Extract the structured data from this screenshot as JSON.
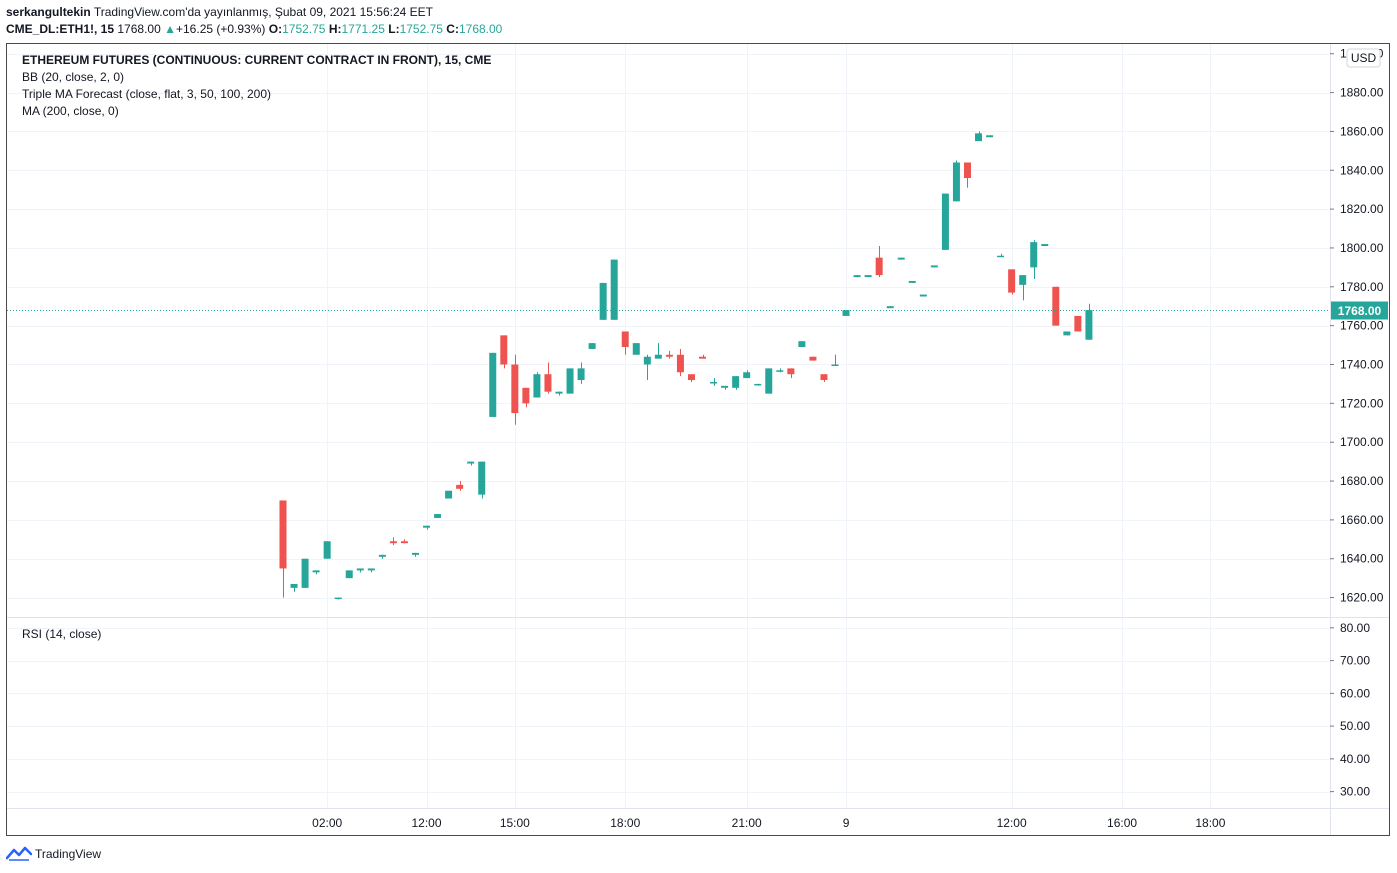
{
  "header": {
    "author": "serkangultekin",
    "published": "TradingView.com'da yayınlanmış, Şubat 09, 2021 15:56:24 EET",
    "symbol": "CME_DL:ETH1!, 15",
    "last": "1768.00",
    "change_arrow": "▲",
    "change": "+16.25 (+0.93%)",
    "o_label": "O:",
    "o": "1752.75",
    "h_label": "H:",
    "h": "1771.25",
    "l_label": "L:",
    "l": "1752.75",
    "c_label": "C:",
    "c": "1768.00"
  },
  "indicators": {
    "title": "ETHEREUM FUTURES (CONTINUOUS: CURRENT CONTRACT IN FRONT), 15, CME",
    "bb": "BB (20, close, 2, 0)",
    "triple_ma": "Triple MA Forecast (close, flat, 3, 50, 100, 200)",
    "ma": "MA (200, close, 0)",
    "rsi": "RSI (14, close)"
  },
  "footer": {
    "brand": "TradingView"
  },
  "colors": {
    "up": "#26a69a",
    "down": "#ef5350",
    "grid": "#f0f3fa",
    "text": "#131722"
  },
  "chart_data": {
    "type": "candlestick",
    "currency": "USD",
    "price_label": "1768.00",
    "y_ticks": [
      "1900.00",
      "1880.00",
      "1860.00",
      "1840.00",
      "1820.00",
      "1800.00",
      "1780.00",
      "1760.00",
      "1740.00",
      "1720.00",
      "1700.00",
      "1680.00",
      "1660.00",
      "1640.00",
      "1620.00"
    ],
    "ylim": [
      1610,
      1905
    ],
    "rsi_ticks": [
      "80.00",
      "70.00",
      "60.00",
      "50.00",
      "40.00",
      "30.00"
    ],
    "rsi_lim": [
      25,
      83
    ],
    "x_ticks": [
      {
        "label": "02:00",
        "t": 4
      },
      {
        "label": "12:00",
        "t": 13
      },
      {
        "label": "15:00",
        "t": 21
      },
      {
        "label": "18:00",
        "t": 31
      },
      {
        "label": "21:00",
        "t": 42
      },
      {
        "label": "9",
        "t": 51
      },
      {
        "label": "12:00",
        "t": 66
      },
      {
        "label": "16:00",
        "t": 76
      },
      {
        "label": "18:00",
        "t": 84
      }
    ],
    "candles": [
      [
        0,
        1670,
        1670,
        1620,
        1635
      ],
      [
        1,
        1625,
        1627,
        1623,
        1627
      ],
      [
        2,
        1625,
        1640,
        1625,
        1640
      ],
      [
        3,
        1633,
        1634,
        1632,
        1634
      ],
      [
        4,
        1640,
        1649,
        1640,
        1649
      ],
      [
        5,
        1620,
        1620,
        1619,
        1620
      ],
      [
        6,
        1630,
        1634,
        1630,
        1634
      ],
      [
        7,
        1634,
        1635,
        1633,
        1635
      ],
      [
        8,
        1634,
        1635,
        1633,
        1635
      ],
      [
        9,
        1641,
        1642,
        1640,
        1642
      ],
      [
        10,
        1649,
        1651,
        1647,
        1648
      ],
      [
        11,
        1649,
        1650,
        1648,
        1648
      ],
      [
        12,
        1642,
        1643,
        1641,
        1643
      ],
      [
        13,
        1656,
        1657,
        1655,
        1657
      ],
      [
        14,
        1661,
        1663,
        1661,
        1663
      ],
      [
        15,
        1671,
        1675,
        1671,
        1675
      ],
      [
        16,
        1678,
        1680,
        1675,
        1676
      ],
      [
        17,
        1689,
        1690,
        1688,
        1690
      ],
      [
        18,
        1673,
        1690,
        1671,
        1690
      ],
      [
        19,
        1713,
        1746,
        1713,
        1746
      ],
      [
        20,
        1755,
        1755,
        1738,
        1740
      ],
      [
        21,
        1740,
        1745,
        1709,
        1715
      ],
      [
        22,
        1728,
        1728,
        1718,
        1720
      ],
      [
        23,
        1723,
        1736,
        1723,
        1735
      ],
      [
        24,
        1735,
        1741,
        1725,
        1726
      ],
      [
        25,
        1725,
        1726,
        1724,
        1726
      ],
      [
        26,
        1725,
        1738,
        1725,
        1738
      ],
      [
        27,
        1732,
        1741,
        1730,
        1738
      ],
      [
        28,
        1748,
        1751,
        1748,
        1751
      ],
      [
        29,
        1763,
        1782,
        1763,
        1782
      ],
      [
        30,
        1763,
        1794,
        1763,
        1794
      ],
      [
        31,
        1757,
        1757,
        1745,
        1749
      ],
      [
        32,
        1745,
        1751,
        1745,
        1751
      ],
      [
        33,
        1740,
        1745,
        1732,
        1744
      ],
      [
        34,
        1743,
        1751,
        1743,
        1745
      ],
      [
        35,
        1745,
        1747,
        1743,
        1744
      ],
      [
        36,
        1745,
        1748,
        1734,
        1736
      ],
      [
        37,
        1735,
        1735,
        1731,
        1732
      ],
      [
        38,
        1744,
        1745,
        1743,
        1743
      ],
      [
        39,
        1731,
        1733,
        1729,
        1731
      ],
      [
        40,
        1728,
        1729,
        1727,
        1729
      ],
      [
        41,
        1728,
        1734,
        1727,
        1734
      ],
      [
        42,
        1733,
        1737,
        1733,
        1736
      ],
      [
        43,
        1730,
        1730,
        1729,
        1730
      ],
      [
        44,
        1725,
        1738,
        1725,
        1738
      ],
      [
        45,
        1737,
        1738,
        1736,
        1737
      ],
      [
        46,
        1738,
        1738,
        1733,
        1735
      ],
      [
        47,
        1749,
        1752,
        1749,
        1752
      ],
      [
        48,
        1744,
        1744,
        1742,
        1742
      ],
      [
        49,
        1735,
        1735,
        1731,
        1732
      ],
      [
        50,
        1740,
        1745,
        1740,
        1740
      ],
      [
        51,
        1765,
        1768,
        1765,
        1768
      ],
      [
        52,
        1785,
        1786,
        1785,
        1786
      ],
      [
        53,
        1785,
        1786,
        1785,
        1786
      ],
      [
        54,
        1795,
        1801,
        1785,
        1786
      ],
      [
        55,
        1769,
        1770,
        1769,
        1770
      ],
      [
        56,
        1794,
        1795,
        1794,
        1795
      ],
      [
        57,
        1782,
        1783,
        1782,
        1783
      ],
      [
        58,
        1775,
        1776,
        1775,
        1776
      ],
      [
        59,
        1790,
        1791,
        1790,
        1791
      ],
      [
        60,
        1799,
        1828,
        1799,
        1828
      ],
      [
        61,
        1824,
        1845,
        1824,
        1844
      ],
      [
        62,
        1844,
        1844,
        1831,
        1836
      ],
      [
        63,
        1855,
        1860,
        1855,
        1859
      ],
      [
        64,
        1857,
        1858,
        1857,
        1858
      ],
      [
        65,
        1796,
        1797,
        1796,
        1796
      ],
      [
        66,
        1789,
        1789,
        1776,
        1777
      ],
      [
        67,
        1781,
        1786,
        1773,
        1786
      ],
      [
        68,
        1790,
        1804,
        1784,
        1803
      ],
      [
        69,
        1801,
        1802,
        1801,
        1802
      ],
      [
        70,
        1780,
        1780,
        1760,
        1760
      ],
      [
        71,
        1755,
        1757,
        1755,
        1757
      ],
      [
        72,
        1765,
        1765,
        1757,
        1757
      ],
      [
        73,
        1752.75,
        1771.25,
        1752.75,
        1768
      ]
    ]
  }
}
